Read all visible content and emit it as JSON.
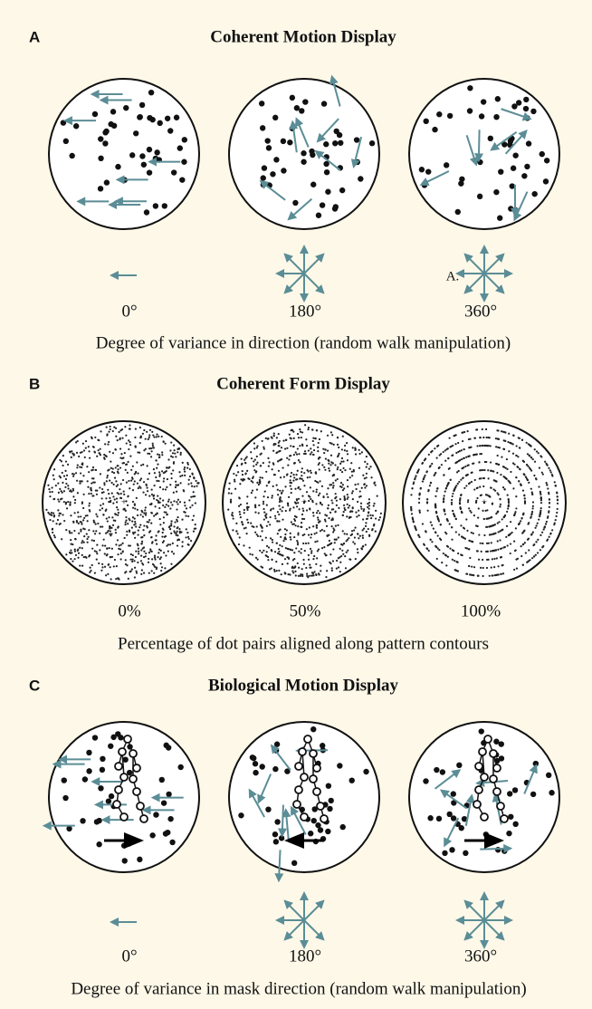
{
  "panels": [
    {
      "label": "A",
      "title": "Coherent Motion Display",
      "conditions": [
        "0°",
        "180°",
        "360°"
      ],
      "caption": "Degree of variance in direction (random walk manipulation)"
    },
    {
      "label": "B",
      "title": "Coherent Form Display",
      "conditions": [
        "0%",
        "50%",
        "100%"
      ],
      "caption": "Percentage of dot pairs aligned along pattern contours"
    },
    {
      "label": "C",
      "title": "Biological Motion Display",
      "conditions": [
        "0°",
        "180°",
        "360°"
      ],
      "caption": "Degree of variance in mask direction (random walk manipulation)"
    }
  ],
  "annotation": "A."
}
